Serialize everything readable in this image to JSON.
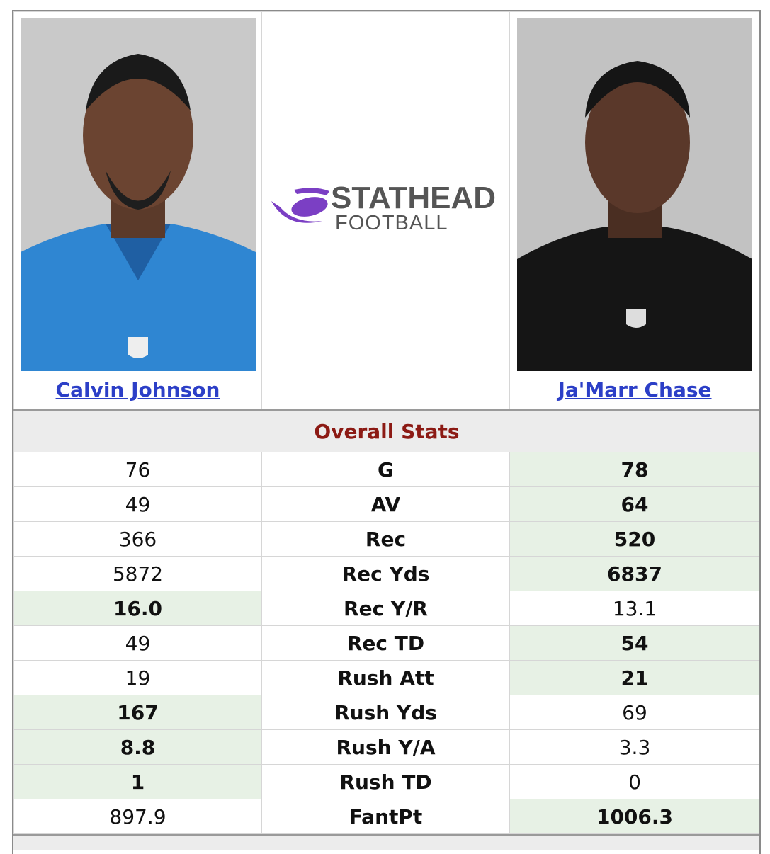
{
  "players": [
    {
      "name": "Calvin Johnson"
    },
    {
      "name": "Ja'Marr Chase"
    }
  ],
  "logo": {
    "line1": "STATHEAD",
    "line2": "FOOTBALL"
  },
  "section_title": "Overall Stats",
  "table": {
    "rows": [
      {
        "left": "76",
        "stat": "G",
        "right": "78",
        "better": "right"
      },
      {
        "left": "49",
        "stat": "AV",
        "right": "64",
        "better": "right"
      },
      {
        "left": "366",
        "stat": "Rec",
        "right": "520",
        "better": "right"
      },
      {
        "left": "5872",
        "stat": "Rec Yds",
        "right": "6837",
        "better": "right"
      },
      {
        "left": "16.0",
        "stat": "Rec Y/R",
        "right": "13.1",
        "better": "left"
      },
      {
        "left": "49",
        "stat": "Rec TD",
        "right": "54",
        "better": "right"
      },
      {
        "left": "19",
        "stat": "Rush Att",
        "right": "21",
        "better": "right"
      },
      {
        "left": "167",
        "stat": "Rush Yds",
        "right": "69",
        "better": "left"
      },
      {
        "left": "8.8",
        "stat": "Rush Y/A",
        "right": "3.3",
        "better": "left"
      },
      {
        "left": "1",
        "stat": "Rush TD",
        "right": "0",
        "better": "left"
      },
      {
        "left": "897.9",
        "stat": "FantPt",
        "right": "1006.3",
        "better": "right"
      }
    ]
  }
}
